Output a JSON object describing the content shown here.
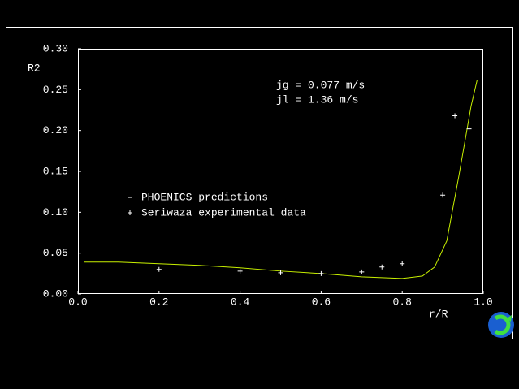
{
  "chart_data": {
    "type": "line",
    "xlabel": "r/R",
    "ylabel": "R2",
    "annotations": [
      "jg = 0.077 m/s",
      "jl = 1.36 m/s"
    ],
    "legend": "left",
    "xlim": [
      0,
      1
    ],
    "ylim": [
      0,
      0.3
    ],
    "xticks": [
      {
        "value": 0,
        "label": "0.0"
      },
      {
        "value": 0.2,
        "label": "0.2"
      },
      {
        "value": 0.4,
        "label": "0.4"
      },
      {
        "value": 0.6,
        "label": "0.6"
      },
      {
        "value": 0.8,
        "label": "0.8"
      },
      {
        "value": 1,
        "label": "1.0"
      }
    ],
    "yticks": [
      {
        "value": 0,
        "label": "0.00"
      },
      {
        "value": 0.05,
        "label": "0.05"
      },
      {
        "value": 0.1,
        "label": "0.10"
      },
      {
        "value": 0.15,
        "label": "0.15"
      },
      {
        "value": 0.2,
        "label": "0.20"
      },
      {
        "value": 0.25,
        "label": "0.25"
      },
      {
        "value": 0.3,
        "label": "0.30"
      }
    ],
    "series": [
      {
        "name": "PHOENICS predictions",
        "type": "line",
        "color": "#c8f000",
        "x": [
          0.015,
          0.1,
          0.2,
          0.3,
          0.4,
          0.5,
          0.6,
          0.7,
          0.75,
          0.8,
          0.85,
          0.88,
          0.91,
          0.94,
          0.97,
          0.985
        ],
        "values": [
          0.039,
          0.039,
          0.037,
          0.035,
          0.032,
          0.028,
          0.025,
          0.021,
          0.02,
          0.019,
          0.022,
          0.033,
          0.065,
          0.145,
          0.23,
          0.262
        ]
      },
      {
        "name": "Seriwaza experimental data",
        "type": "scatter",
        "color": "#ffffff",
        "x": [
          0.2,
          0.4,
          0.5,
          0.6,
          0.7,
          0.75,
          0.8,
          0.9,
          0.93,
          0.965
        ],
        "values": [
          0.03,
          0.028,
          0.026,
          0.025,
          0.027,
          0.033,
          0.037,
          0.121,
          0.218,
          0.202
        ]
      }
    ]
  }
}
